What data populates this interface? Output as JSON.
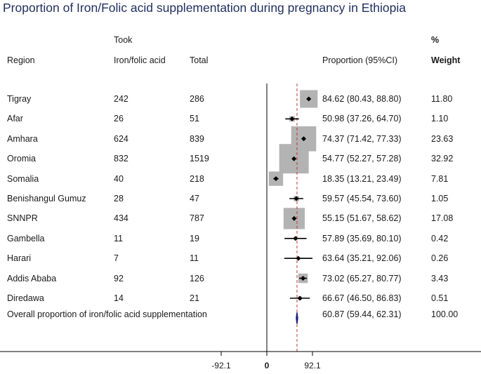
{
  "title": "Proportion of Iron/Folic acid supplementation during pregnancy in Ethiopia",
  "headers": {
    "region": "Region",
    "took_line1": "Took",
    "took_line2": "Iron/folic acid",
    "total": "Total",
    "proportion": "Proportion (95%CI)",
    "weight_line1": "%",
    "weight_line2": "Weight"
  },
  "rows": [
    {
      "region": "Tigray",
      "took": "242",
      "total": "286",
      "ci": "84.62 (80.43, 88.80)",
      "weight": "11.80"
    },
    {
      "region": "Afar",
      "took": "26",
      "total": "51",
      "ci": "50.98 (37.26, 64.70)",
      "weight": "1.10"
    },
    {
      "region": "Amhara",
      "took": "624",
      "total": "839",
      "ci": "74.37 (71.42, 77.33)",
      "weight": "23.63"
    },
    {
      "region": "Oromia",
      "took": "832",
      "total": "1519",
      "ci": "54.77 (52.27, 57.28)",
      "weight": "32.92"
    },
    {
      "region": "Somalia",
      "took": "40",
      "total": "218",
      "ci": "18.35 (13.21, 23.49)",
      "weight": "7.81"
    },
    {
      "region": "Benishangul Gumuz",
      "took": "28",
      "total": "47",
      "ci": "59.57 (45.54, 73.60)",
      "weight": "1.05"
    },
    {
      "region": "SNNPR",
      "took": "434",
      "total": "787",
      "ci": "55.15 (51.67, 58.62)",
      "weight": "17.08"
    },
    {
      "region": "Gambella",
      "took": "11",
      "total": "19",
      "ci": "57.89 (35.69, 80.10)",
      "weight": "0.42"
    },
    {
      "region": "Harari",
      "took": "7",
      "total": "11",
      "ci": "63.64 (35.21, 92.06)",
      "weight": "0.26"
    },
    {
      "region": "Addis Ababa",
      "took": "92",
      "total": "126",
      "ci": "73.02 (65.27, 80.77)",
      "weight": "3.43"
    },
    {
      "region": "Diredawa",
      "took": "14",
      "total": "21",
      "ci": "66.67 (46.50, 86.83)",
      "weight": "0.51"
    }
  ],
  "overall": {
    "label": "Overall proportion of iron/folic acid supplementation",
    "ci": "60.87 (59.44, 62.31)",
    "weight": "100.00"
  },
  "chart_data": {
    "type": "forest",
    "title": "Proportion of Iron/Folic acid supplementation during pregnancy in Ethiopia",
    "x_ticks": [
      -92.1,
      0,
      92.1
    ],
    "x_tick_labels": [
      "-92.1",
      "0",
      "92.1"
    ],
    "reference_line": 0,
    "pooled_line": 60.87,
    "studies": [
      {
        "name": "Tigray",
        "estimate": 84.62,
        "lower": 80.43,
        "upper": 88.8,
        "weight": 11.8
      },
      {
        "name": "Afar",
        "estimate": 50.98,
        "lower": 37.26,
        "upper": 64.7,
        "weight": 1.1
      },
      {
        "name": "Amhara",
        "estimate": 74.37,
        "lower": 71.42,
        "upper": 77.33,
        "weight": 23.63
      },
      {
        "name": "Oromia",
        "estimate": 54.77,
        "lower": 52.27,
        "upper": 57.28,
        "weight": 32.92
      },
      {
        "name": "Somalia",
        "estimate": 18.35,
        "lower": 13.21,
        "upper": 23.49,
        "weight": 7.81
      },
      {
        "name": "Benishangul Gumuz",
        "estimate": 59.57,
        "lower": 45.54,
        "upper": 73.6,
        "weight": 1.05
      },
      {
        "name": "SNNPR",
        "estimate": 55.15,
        "lower": 51.67,
        "upper": 58.62,
        "weight": 17.08
      },
      {
        "name": "Gambella",
        "estimate": 57.89,
        "lower": 35.69,
        "upper": 80.1,
        "weight": 0.42
      },
      {
        "name": "Harari",
        "estimate": 63.64,
        "lower": 35.21,
        "upper": 92.06,
        "weight": 0.26
      },
      {
        "name": "Addis Ababa",
        "estimate": 73.02,
        "lower": 65.27,
        "upper": 80.77,
        "weight": 3.43
      },
      {
        "name": "Diredawa",
        "estimate": 66.67,
        "lower": 46.5,
        "upper": 86.83,
        "weight": 0.51
      }
    ],
    "overall": {
      "estimate": 60.87,
      "lower": 59.44,
      "upper": 62.31
    },
    "colors": {
      "box": "#b3b3b3",
      "diamond_overall": "#1a237e",
      "pooled_line": "#c0392b",
      "axis": "#000000"
    }
  }
}
